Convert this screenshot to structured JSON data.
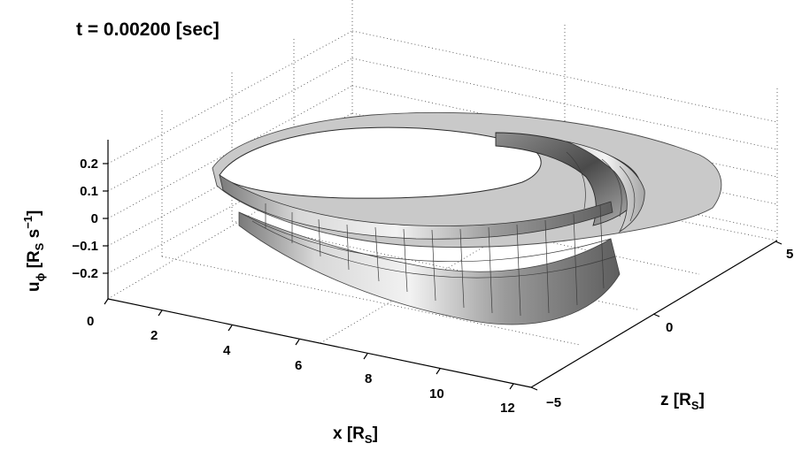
{
  "chart_data": {
    "type": "surface3d",
    "title": "t = 0.00200 [sec]",
    "xlabel": {
      "main": "x [R",
      "sub": "S",
      "close": "]"
    },
    "ylabel": {
      "main": "z [R",
      "sub": "S",
      "close": "]"
    },
    "zlabel": {
      "main": "u",
      "sub_phi": "ϕ",
      "bracket": " [R",
      "sub_s": "S",
      "mid": " s",
      "sup": "−1",
      "close": "]"
    },
    "x_ticks": [
      "0",
      "2",
      "4",
      "6",
      "8",
      "10",
      "12"
    ],
    "y_ticks": [
      "−5",
      "0",
      "5"
    ],
    "z_ticks": [
      "0.2",
      "0.1",
      "0",
      "−0.1",
      "−0.2"
    ],
    "xlim": [
      0,
      12
    ],
    "ylim": [
      -5,
      5
    ],
    "zlim": [
      -0.3,
      0.3
    ],
    "grid": true,
    "surface": "grey-shaded ring (annulus) of azimuthal velocity u_phi over the x–z plane, outer radius about 12 R_S, inner hole up to about 6 R_S; a positive crest near 0.2 on the far inner edge and a negative trough near −0.25 on the near side"
  }
}
